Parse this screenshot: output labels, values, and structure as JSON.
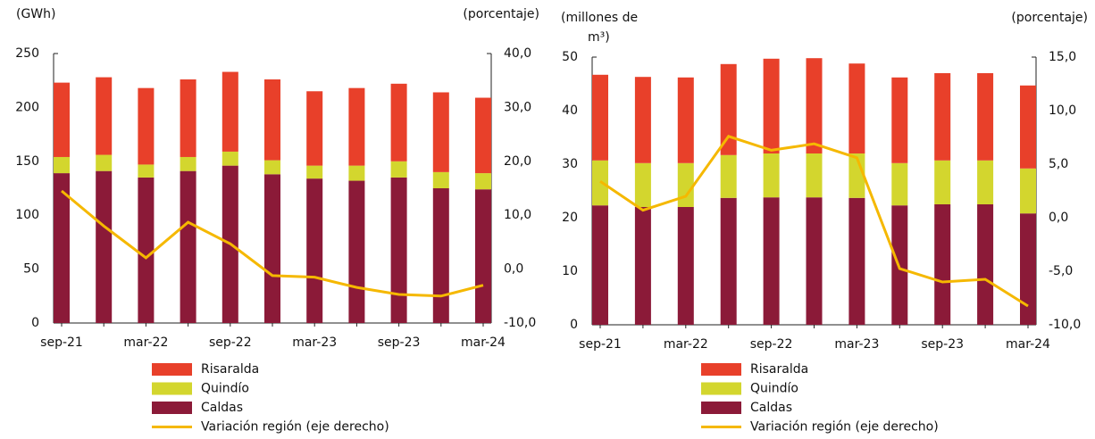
{
  "chart_data": [
    {
      "type": "bar",
      "stacked": true,
      "y_label": [
        "(GWh)"
      ],
      "y2_label": [
        "(porcentaje)"
      ],
      "categories": [
        "sep-21",
        null,
        "mar-22",
        null,
        "sep-22",
        null,
        "mar-23",
        null,
        "sep-23",
        null,
        "mar-24"
      ],
      "ylim": [
        0,
        250
      ],
      "yticks": [
        0,
        50,
        100,
        150,
        200,
        250
      ],
      "y2lim": [
        -10,
        40
      ],
      "y2ticks": [
        {
          "value": -10,
          "label": "-10,0"
        },
        {
          "value": 0,
          "label": "0,0"
        },
        {
          "value": 10,
          "label": "10,0"
        },
        {
          "value": 20,
          "label": "20,0"
        },
        {
          "value": 30,
          "label": "30,0"
        },
        {
          "value": 40,
          "label": "40,0"
        }
      ],
      "series": [
        {
          "name": "Risaralda",
          "color": "#e8402a",
          "values": [
            69,
            72,
            71,
            72,
            74,
            75,
            69,
            72,
            72,
            74,
            70
          ]
        },
        {
          "name": "Quindío",
          "color": "#d3d62e",
          "values": [
            15,
            15,
            12,
            13,
            13,
            13,
            12,
            14,
            15,
            15,
            15
          ]
        },
        {
          "name": "Caldas",
          "color": "#8b1a38",
          "values": [
            139,
            141,
            135,
            141,
            146,
            138,
            134,
            132,
            135,
            125,
            124
          ]
        },
        {
          "name": "Variación región (eje derecho)",
          "color": "#f5b800",
          "type": "line",
          "axis": "y2",
          "values": [
            14.5,
            8.0,
            2.1,
            8.7,
            4.7,
            -1.2,
            -1.5,
            -3.4,
            -4.7,
            -5.0,
            -3.0
          ]
        }
      ]
    },
    {
      "type": "bar",
      "stacked": true,
      "y_label": [
        "(millones de",
        "m³)"
      ],
      "y2_label": [
        "(porcentaje)"
      ],
      "categories": [
        "sep-21",
        null,
        "mar-22",
        null,
        "sep-22",
        null,
        "mar-23",
        null,
        "sep-23",
        null,
        "mar-24"
      ],
      "ylim": [
        0,
        50
      ],
      "yticks": [
        0,
        10,
        20,
        30,
        40,
        50
      ],
      "y2lim": [
        -10,
        15
      ],
      "y2ticks": [
        {
          "value": -10,
          "label": "-10,0"
        },
        {
          "value": -5,
          "label": "-5,0"
        },
        {
          "value": 0,
          "label": "0,0"
        },
        {
          "value": 5,
          "label": "5,0"
        },
        {
          "value": 10,
          "label": "10,0"
        },
        {
          "value": 15,
          "label": "15,0"
        }
      ],
      "series": [
        {
          "name": "Risaralda",
          "color": "#e8402a",
          "values": [
            16.0,
            16.1,
            16.0,
            17.0,
            17.7,
            17.8,
            16.8,
            16.0,
            16.3,
            16.3,
            15.5
          ]
        },
        {
          "name": "Quindío",
          "color": "#d3d62e",
          "values": [
            8.4,
            8.2,
            8.2,
            8.0,
            8.2,
            8.2,
            8.3,
            7.9,
            8.2,
            8.2,
            8.4
          ]
        },
        {
          "name": "Caldas",
          "color": "#8b1a38",
          "values": [
            22.3,
            22.0,
            22.0,
            23.7,
            23.8,
            23.8,
            23.7,
            22.3,
            22.5,
            22.5,
            20.8
          ]
        },
        {
          "name": "Variación región (eje derecho)",
          "color": "#f5b800",
          "type": "line",
          "axis": "y2",
          "values": [
            3.4,
            0.7,
            2.0,
            7.6,
            6.3,
            6.9,
            5.6,
            -4.75,
            -6.0,
            -5.75,
            -8.25
          ]
        }
      ]
    }
  ]
}
